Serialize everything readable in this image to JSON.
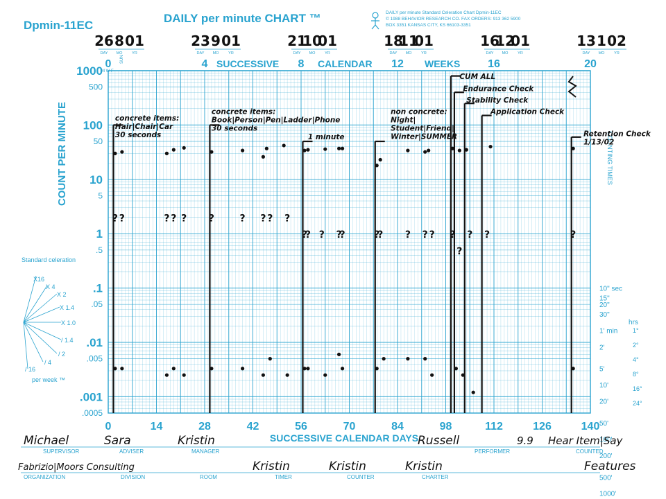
{
  "colors": {
    "chart_blue": "#29a3cf",
    "ink": "#111111",
    "paper": "#ffffff"
  },
  "header": {
    "chart_id": "Dpmin-11EC",
    "title": "DAILY per minute CHART ™",
    "publisher_lines": [
      "DAILY per minute Standard Celeration Chart   Dpmin-11EC",
      "© 1988 BEHAVIOR RESEARCH CO. FAX ORDERS: 913 362 5900",
      "BOX 3351  KANSAS CITY, KS  66103-3351"
    ],
    "top_axis_title_left": "SUCCESSIVE",
    "top_axis_title_right": "CALENDAR",
    "top_axis_title_weeks": "WEEKS",
    "day_letters": "M  W  F",
    "sun_label": "SUN",
    "date_field_labels": [
      "DAY",
      "MO",
      "YR"
    ]
  },
  "dates": [
    {
      "day": "26",
      "mo": "8",
      "yr": "01"
    },
    {
      "day": "23",
      "mo": "9",
      "yr": "01"
    },
    {
      "day": "21",
      "mo": "10",
      "yr": "01"
    },
    {
      "day": "18",
      "mo": "11",
      "yr": "01"
    },
    {
      "day": "16",
      "mo": "12",
      "yr": "01"
    },
    {
      "day": "13",
      "mo": "1",
      "yr": "02"
    }
  ],
  "week_ticks": [
    "0",
    "4",
    "8",
    "12",
    "16",
    "20"
  ],
  "day_ticks": [
    "0",
    "14",
    "28",
    "42",
    "56",
    "70",
    "84",
    "98",
    "112",
    "126",
    "140"
  ],
  "y_ticks": [
    {
      "v": 1000,
      "label": "1000",
      "major": true
    },
    {
      "v": 500,
      "label": "500",
      "major": false
    },
    {
      "v": 100,
      "label": "100",
      "major": true
    },
    {
      "v": 50,
      "label": "50",
      "major": false
    },
    {
      "v": 10,
      "label": "10",
      "major": true
    },
    {
      "v": 5,
      "label": "5",
      "major": false
    },
    {
      "v": 1,
      "label": "1",
      "major": true
    },
    {
      "v": 0.5,
      "label": ".5",
      "major": false
    },
    {
      "v": 0.1,
      "label": ".1",
      "major": true
    },
    {
      "v": 0.05,
      "label": ".05",
      "major": false
    },
    {
      "v": 0.01,
      "label": ".01",
      "major": true
    },
    {
      "v": 0.005,
      "label": ".005",
      "major": false
    },
    {
      "v": 0.001,
      "label": ".001",
      "major": true
    },
    {
      "v": 0.0005,
      "label": ".0005",
      "major": false
    }
  ],
  "time_ticks": [
    {
      "v": 0.1,
      "label": "10\" sec"
    },
    {
      "v": 0.0667,
      "label": "15\""
    },
    {
      "v": 0.05,
      "label": "20\""
    },
    {
      "v": 0.0333,
      "label": "30\""
    },
    {
      "v": 0.0167,
      "label": "1' min"
    },
    {
      "v": 0.0083,
      "label": "2'"
    },
    {
      "v": 0.0033,
      "label": "5'"
    },
    {
      "v": 0.00167,
      "label": "10'"
    },
    {
      "v": 0.00083,
      "label": "20'"
    },
    {
      "v": 0.00033,
      "label": "50'"
    },
    {
      "v": 0.000167,
      "label": "100'"
    },
    {
      "v": 8.3e-05,
      "label": "200'"
    },
    {
      "v": 3.3e-05,
      "label": "500'"
    },
    {
      "v": 1.67e-05,
      "label": "1000'"
    }
  ],
  "hrs_label": "hrs",
  "hrs_ticks": [
    "1°",
    "2°",
    "4°",
    "8°",
    "16°",
    "24°"
  ],
  "ylabel": "COUNT PER MINUTE",
  "right_axis_label": "COUNTING TIMES",
  "xlabel": "SUCCESSIVE CALENDAR DAYS",
  "celeration_fan": {
    "title": "Standard celeration",
    "labels": [
      "X16",
      "X 4",
      "X 2",
      "X 1.4",
      "X 1.0",
      "/ 1.4",
      "/ 2",
      "/ 4",
      "/ 16"
    ],
    "footer": "per week ™"
  },
  "footer_fields": {
    "supervisor": {
      "label": "SUPERVISOR",
      "value": "Michael"
    },
    "adviser": {
      "label": "ADVISER",
      "value": "Sara"
    },
    "manager": {
      "label": "MANAGER",
      "value": "Kristin"
    },
    "performer": {
      "label": "PERFORMER",
      "value": "Russell"
    },
    "age": {
      "value": "9.9"
    },
    "counted": {
      "label": "COUNTED",
      "value": "Hear Item|Say"
    },
    "organization": {
      "label": "ORGANIZATION",
      "value": "Fabrizio|Moors Consulting"
    },
    "division": {
      "label": "DIVISION"
    },
    "room": {
      "label": "ROOM"
    },
    "timer": {
      "label": "TIMER",
      "value": "Kristin"
    },
    "counter": {
      "label": "COUNTER",
      "value": "Kristin"
    },
    "charter": {
      "label": "CHARTER",
      "value": "Kristin"
    },
    "features": {
      "value": "Features"
    }
  },
  "annotations": [
    {
      "day": 2,
      "count": 120,
      "lines": [
        "concrete items:",
        "Hair|Chair|Car",
        "30 seconds"
      ]
    },
    {
      "day": 30,
      "count": 160,
      "lines": [
        "concrete items:",
        "Book|Person|Pen|Ladder|Phone",
        "30 seconds"
      ]
    },
    {
      "day": 58,
      "count": 55,
      "lines": [
        "1 minute"
      ]
    },
    {
      "day": 82,
      "count": 160,
      "lines": [
        "non concrete:",
        "Night|",
        "Student|Friend|",
        "Winter|SUMMER"
      ]
    },
    {
      "day": 102,
      "count": 700,
      "lines": [
        "CUM ALL"
      ]
    },
    {
      "day": 103,
      "count": 420,
      "lines": [
        "Endurance Check"
      ]
    },
    {
      "day": 104,
      "count": 260,
      "lines": [
        "Stability Check"
      ]
    },
    {
      "day": 111,
      "count": 160,
      "lines": [
        "Application Check"
      ]
    },
    {
      "day": 138,
      "count": 62,
      "lines": [
        "Retention Check",
        "1/13/02"
      ]
    }
  ],
  "chart_data": {
    "type": "scatter",
    "title": "DAILY per minute CHART ™",
    "xlabel": "SUCCESSIVE CALENDAR DAYS",
    "ylabel": "COUNT PER MINUTE",
    "xlim": [
      0,
      140
    ],
    "ylim": [
      0.0005,
      1000
    ],
    "yscale": "log",
    "grid": true,
    "phase_lines": [
      {
        "day": 1.5,
        "top": 100
      },
      {
        "day": 29.5,
        "top": 100
      },
      {
        "day": 56.5,
        "top": 50
      },
      {
        "day": 77.5,
        "top": 50
      },
      {
        "day": 99.5,
        "top": 800
      },
      {
        "day": 100.5,
        "top": 400
      },
      {
        "day": 103.5,
        "top": 250
      },
      {
        "day": 108.5,
        "top": 150
      },
      {
        "day": 134.5,
        "top": 60
      }
    ],
    "series": [
      {
        "name": "correct",
        "marker": "dot",
        "points": [
          [
            2,
            30
          ],
          [
            4,
            32
          ],
          [
            17,
            30
          ],
          [
            19,
            35
          ],
          [
            22,
            38
          ],
          [
            30,
            32
          ],
          [
            39,
            34
          ],
          [
            45,
            26
          ],
          [
            46,
            37
          ],
          [
            51,
            42
          ],
          [
            57,
            34
          ],
          [
            58,
            35
          ],
          [
            63,
            36
          ],
          [
            67,
            37
          ],
          [
            68,
            37
          ],
          [
            78,
            18
          ],
          [
            79,
            23
          ],
          [
            87,
            34
          ],
          [
            92,
            32
          ],
          [
            93,
            34
          ],
          [
            100,
            37
          ],
          [
            102,
            34
          ],
          [
            104,
            35
          ],
          [
            111,
            40
          ],
          [
            135,
            37
          ]
        ]
      },
      {
        "name": "incorrect",
        "marker": "?",
        "points": [
          [
            2,
            2
          ],
          [
            4,
            2
          ],
          [
            17,
            2
          ],
          [
            19,
            2
          ],
          [
            22,
            2
          ],
          [
            30,
            2
          ],
          [
            39,
            2
          ],
          [
            45,
            2
          ],
          [
            47,
            2
          ],
          [
            52,
            2
          ],
          [
            57,
            1
          ],
          [
            58,
            1
          ],
          [
            62,
            1
          ],
          [
            67,
            1
          ],
          [
            68,
            1
          ],
          [
            78,
            1
          ],
          [
            79,
            1
          ],
          [
            87,
            1
          ],
          [
            92,
            1
          ],
          [
            94,
            1
          ],
          [
            100,
            1
          ],
          [
            102,
            0.5
          ],
          [
            105,
            1
          ],
          [
            110,
            1
          ],
          [
            135,
            1
          ]
        ]
      },
      {
        "name": "record floor",
        "marker": "dot",
        "points": [
          [
            2,
            0.0033
          ],
          [
            4,
            0.0033
          ],
          [
            17,
            0.0025
          ],
          [
            19,
            0.0033
          ],
          [
            22,
            0.0025
          ],
          [
            30,
            0.0033
          ],
          [
            39,
            0.0033
          ],
          [
            45,
            0.0025
          ],
          [
            47,
            0.005
          ],
          [
            52,
            0.0025
          ],
          [
            57,
            0.0033
          ],
          [
            58,
            0.0033
          ],
          [
            63,
            0.0025
          ],
          [
            67,
            0.006
          ],
          [
            68,
            0.0033
          ],
          [
            78,
            0.0033
          ],
          [
            80,
            0.005
          ],
          [
            87,
            0.005
          ],
          [
            92,
            0.005
          ],
          [
            94,
            0.0025
          ],
          [
            101,
            0.0033
          ],
          [
            103,
            0.0025
          ],
          [
            106,
            0.0012
          ],
          [
            135,
            0.0033
          ]
        ]
      }
    ]
  }
}
